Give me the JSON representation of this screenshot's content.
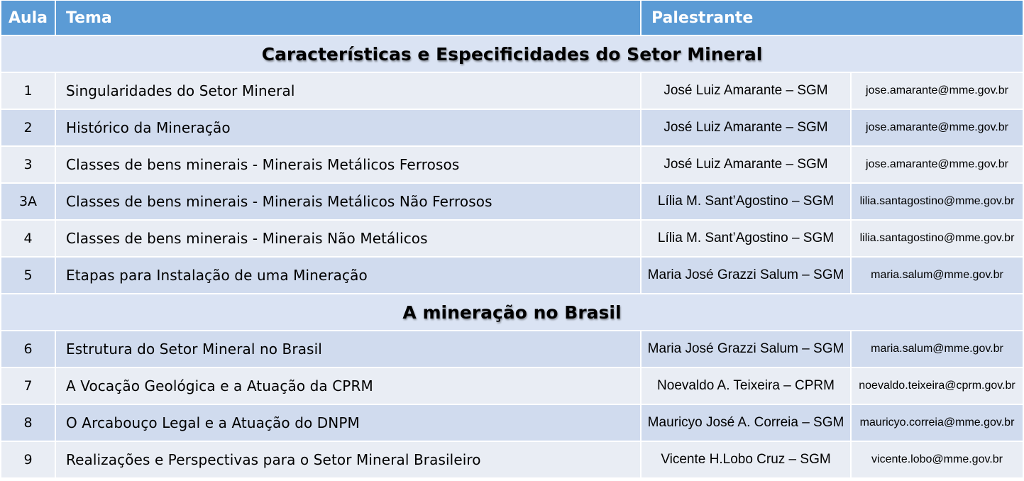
{
  "headers": {
    "aula": "Aula",
    "tema": "Tema",
    "palestrante": "Palestrante"
  },
  "colors": {
    "header_bg": "#5b9bd5",
    "header_text": "#ffffff",
    "section_bg": "#dae3f3",
    "row_light": "#e9edf4",
    "row_dark": "#d0dbee"
  },
  "sections": [
    {
      "title": "Características e Especificidades do Setor Mineral",
      "rows": [
        {
          "aula": "1",
          "tema": "Singularidades do Setor Mineral",
          "palestrante": "José Luiz Amarante – SGM",
          "email": "jose.amarante@mme.gov.br"
        },
        {
          "aula": "2",
          "tema": "Histórico da Mineração",
          "palestrante": "José Luiz Amarante – SGM",
          "email": "jose.amarante@mme.gov.br"
        },
        {
          "aula": "3",
          "tema": "Classes de bens minerais -  Minerais Metálicos Ferrosos",
          "palestrante": "José Luiz Amarante – SGM",
          "email": "jose.amarante@mme.gov.br"
        },
        {
          "aula": "3A",
          "tema": "Classes de bens minerais -  Minerais Metálicos Não Ferrosos",
          "palestrante": "Lília M. Sant’Agostino – SGM",
          "email": "lilia.santagostino@mme.gov.br"
        },
        {
          "aula": "4",
          "tema": "Classes de bens minerais -  Minerais Não Metálicos",
          "palestrante": "Lília M. Sant’Agostino – SGM",
          "email": "lilia.santagostino@mme.gov.br"
        },
        {
          "aula": "5",
          "tema": "Etapas para Instalação de uma Mineração",
          "palestrante": "Maria José Grazzi Salum – SGM",
          "email": "maria.salum@mme.gov.br"
        }
      ]
    },
    {
      "title": "A mineração no Brasil",
      "rows": [
        {
          "aula": "6",
          "tema": "Estrutura do Setor Mineral no Brasil",
          "palestrante": "Maria José Grazzi Salum – SGM",
          "email": "maria.salum@mme.gov.br"
        },
        {
          "aula": "7",
          "tema": "A Vocação Geológica e a Atuação da CPRM",
          "palestrante": "Noevaldo A. Teixeira – CPRM",
          "email": "noevaldo.teixeira@cprm.gov.br"
        },
        {
          "aula": "8",
          "tema": "O Arcabouço Legal e a Atuação do DNPM",
          "palestrante": "Mauricyo José A. Correia – SGM",
          "email": "mauricyo.correia@mme.gov.br"
        },
        {
          "aula": "9",
          "tema": "Realizações e Perspectivas para o Setor Mineral Brasileiro",
          "palestrante": "Vicente H.Lobo Cruz – SGM",
          "email": "vicente.lobo@mme.gov.br"
        }
      ]
    }
  ]
}
